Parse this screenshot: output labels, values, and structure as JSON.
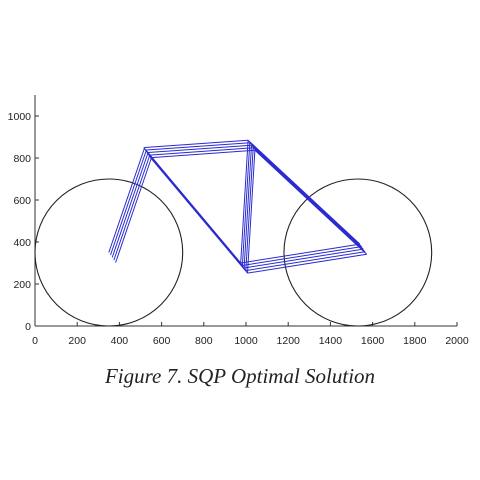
{
  "caption": "Figure 7. SQP Optimal Solution",
  "colors": {
    "frame": "#2a2ad0",
    "wheel": "#222222",
    "axis": "#333333"
  },
  "chart_data": {
    "type": "line",
    "title": "",
    "xlabel": "",
    "ylabel": "",
    "xlim": [
      0,
      2000
    ],
    "ylim": [
      0,
      1100
    ],
    "xticks": [
      "0",
      "200",
      "400",
      "600",
      "800",
      "1000",
      "1200",
      "1400",
      "1600",
      "1800",
      "2000"
    ],
    "yticks": [
      "0",
      "200",
      "400",
      "600",
      "800",
      "1000"
    ],
    "grid": false,
    "wheels": [
      {
        "cx": 350,
        "cy": 350,
        "r": 350
      },
      {
        "cx": 1530,
        "cy": 350,
        "r": 350
      }
    ],
    "frame_offsets": [
      [
        0,
        0
      ],
      [
        8,
        -12
      ],
      [
        16,
        -24
      ],
      [
        24,
        -36
      ],
      [
        32,
        -48
      ]
    ],
    "frame_lines": [
      {
        "name": "seat-stay-front",
        "x": [
          350,
          520
        ],
        "y": [
          350,
          850
        ]
      },
      {
        "name": "top-tube",
        "x": [
          520,
          1010
        ],
        "y": [
          850,
          885
        ]
      },
      {
        "name": "down-tube",
        "x": [
          515,
          975
        ],
        "y": [
          850,
          300
        ]
      },
      {
        "name": "seat-tube",
        "x": [
          1010,
          975
        ],
        "y": [
          885,
          300
        ]
      },
      {
        "name": "head-tube",
        "x": [
          1010,
          1540
        ],
        "y": [
          885,
          390
        ]
      },
      {
        "name": "chain-stay",
        "x": [
          975,
          1540
        ],
        "y": [
          300,
          390
        ]
      }
    ]
  }
}
